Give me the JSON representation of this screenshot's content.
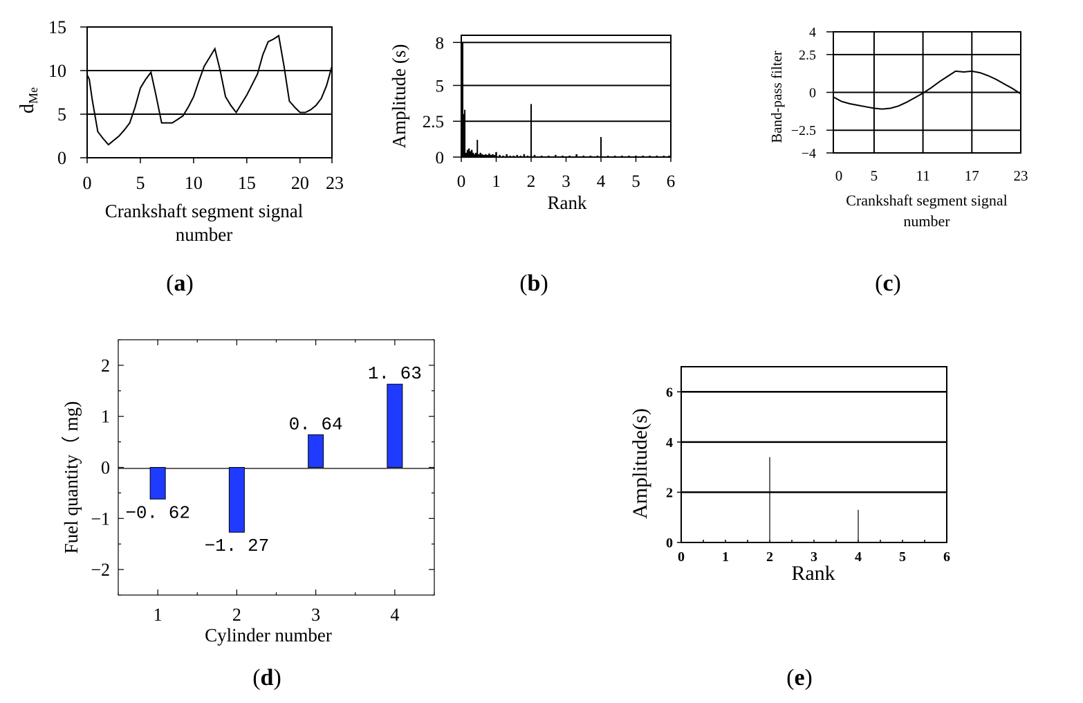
{
  "panel_labels": [
    "a",
    "b",
    "c",
    "d",
    "e"
  ],
  "chart_data": [
    {
      "id": "a",
      "type": "line",
      "title": "",
      "xlabel": "Crankshaft segment signal number",
      "ylabel": "dMe",
      "ylabel_main": "d",
      "ylabel_sub": "Me",
      "xlim": [
        0,
        23
      ],
      "ylim": [
        0,
        15
      ],
      "xticks": [
        0,
        5,
        10,
        15,
        20,
        23
      ],
      "yticks": [
        0,
        5,
        10,
        15
      ],
      "grid_y": [
        5,
        10
      ],
      "x": [
        0,
        0.2,
        0.5,
        1,
        1.5,
        2,
        2.5,
        3,
        3.5,
        4,
        4.5,
        5,
        5.5,
        6,
        6.5,
        7,
        7.5,
        8,
        8.5,
        9,
        9.5,
        10,
        10.5,
        11,
        11.5,
        12,
        12.5,
        13,
        13.5,
        14,
        14.5,
        15,
        15.5,
        16,
        16.5,
        17,
        17.5,
        18,
        18.5,
        19,
        19.5,
        20,
        20.5,
        21,
        21.5,
        22,
        22.5,
        23
      ],
      "y": [
        9.5,
        9.0,
        6.5,
        3.0,
        2.2,
        1.5,
        2.0,
        2.5,
        3.2,
        4.0,
        5.8,
        8.0,
        9.0,
        9.8,
        7.0,
        4.0,
        4.0,
        4.0,
        4.4,
        4.8,
        5.8,
        7.0,
        8.8,
        10.5,
        11.5,
        12.5,
        10.0,
        7.0,
        6.0,
        5.2,
        6.2,
        7.2,
        8.4,
        9.6,
        11.8,
        13.3,
        13.6,
        14.0,
        10.5,
        6.5,
        5.8,
        5.2,
        5.2,
        5.5,
        6.0,
        6.8,
        8.3,
        10.5
      ]
    },
    {
      "id": "b",
      "type": "bar",
      "title": "",
      "xlabel": "Rank",
      "ylabel": "Amplitude (s)",
      "xlim": [
        0,
        6
      ],
      "ylim": [
        0,
        8.5
      ],
      "xticks": [
        0,
        1,
        2,
        3,
        4,
        5,
        6
      ],
      "yticks": [
        0,
        2.5,
        5,
        8
      ],
      "ytick_labels": [
        "0",
        "2.5",
        "5",
        "8"
      ],
      "grid_y": [
        2.5,
        5,
        8
      ],
      "x": [
        0.04,
        0.08,
        0.1,
        0.14,
        0.18,
        0.22,
        0.26,
        0.3,
        0.34,
        0.38,
        0.42,
        0.46,
        0.5,
        0.55,
        0.6,
        0.65,
        0.7,
        0.75,
        0.8,
        0.85,
        0.9,
        0.95,
        1.0,
        1.1,
        1.2,
        1.3,
        1.4,
        1.5,
        1.6,
        1.7,
        1.8,
        1.9,
        2.0,
        2.1,
        2.3,
        2.5,
        2.7,
        2.9,
        3.1,
        3.3,
        3.5,
        3.7,
        3.9,
        4.0,
        4.2,
        4.4,
        4.6,
        4.8,
        5.0,
        5.2,
        5.4,
        5.6,
        5.8,
        5.95
      ],
      "values": [
        8.0,
        3.0,
        3.3,
        0.3,
        0.5,
        0.6,
        0.4,
        0.5,
        0.3,
        0.2,
        0.3,
        1.2,
        0.2,
        0.3,
        0.2,
        0.15,
        0.2,
        0.15,
        0.25,
        0.15,
        0.2,
        0.15,
        0.35,
        0.15,
        0.1,
        0.2,
        0.1,
        0.1,
        0.15,
        0.1,
        0.2,
        0.1,
        3.7,
        0.15,
        0.1,
        0.1,
        0.15,
        0.1,
        0.1,
        0.2,
        0.1,
        0.1,
        0.1,
        1.4,
        0.1,
        0.1,
        0.1,
        0.1,
        0.1,
        0.1,
        0.1,
        0.1,
        0.1,
        0.1
      ]
    },
    {
      "id": "c",
      "type": "line",
      "title": "",
      "xlabel": "Crankshaft segment signal number",
      "ylabel": "Band-pass filter",
      "xlim": [
        0,
        23
      ],
      "ylim": [
        -4,
        4
      ],
      "xticks": [
        0,
        5,
        11,
        17,
        23
      ],
      "yticks": [
        -4,
        -2.5,
        0,
        2.5,
        4
      ],
      "ytick_labels": [
        "−4",
        "−2.5",
        "0",
        "2.5",
        "4"
      ],
      "grid_x": [
        5,
        11,
        17
      ],
      "grid_y": [
        -2.5,
        0,
        2.5
      ],
      "x": [
        0,
        1,
        2,
        3,
        4,
        5,
        6,
        7,
        8,
        9,
        10,
        11,
        12,
        13,
        14,
        15,
        16,
        17,
        18,
        19,
        20,
        21,
        22,
        23
      ],
      "y": [
        -0.3,
        -0.6,
        -0.75,
        -0.85,
        -0.95,
        -1.05,
        -1.1,
        -1.05,
        -0.9,
        -0.65,
        -0.35,
        -0.05,
        0.3,
        0.7,
        1.05,
        1.4,
        1.35,
        1.4,
        1.3,
        1.1,
        0.85,
        0.55,
        0.25,
        -0.1
      ]
    },
    {
      "id": "d",
      "type": "bar",
      "title": "",
      "xlabel": "Cylinder number",
      "ylabel": "Fuel quantity (  mg)",
      "ylabel_text": "Fuel quantity（ mg)",
      "xlim": [
        0.5,
        4.5
      ],
      "ylim": [
        -2.5,
        2.5
      ],
      "categories": [
        "1",
        "2",
        "3",
        "4"
      ],
      "values": [
        -0.62,
        -1.27,
        0.64,
        1.63
      ],
      "value_labels": [
        "−0. 62",
        "−1. 27",
        "0. 64",
        "1. 63"
      ],
      "yticks": [
        -2,
        -1,
        0,
        1,
        2
      ],
      "ytick_labels": [
        "−2",
        "−1",
        "0",
        "1",
        "2"
      ],
      "bar_color": "#1f3bff"
    },
    {
      "id": "e",
      "type": "bar",
      "title": "",
      "xlabel": "Rank",
      "ylabel": "Amplitude(s)",
      "xlim": [
        0,
        6
      ],
      "ylim": [
        0,
        7
      ],
      "xticks": [
        0,
        1,
        2,
        3,
        4,
        5,
        6
      ],
      "yticks": [
        0,
        2,
        4,
        6
      ],
      "grid_y": [
        2,
        4,
        6
      ],
      "x": [
        2,
        4
      ],
      "values": [
        3.4,
        1.3
      ]
    }
  ]
}
